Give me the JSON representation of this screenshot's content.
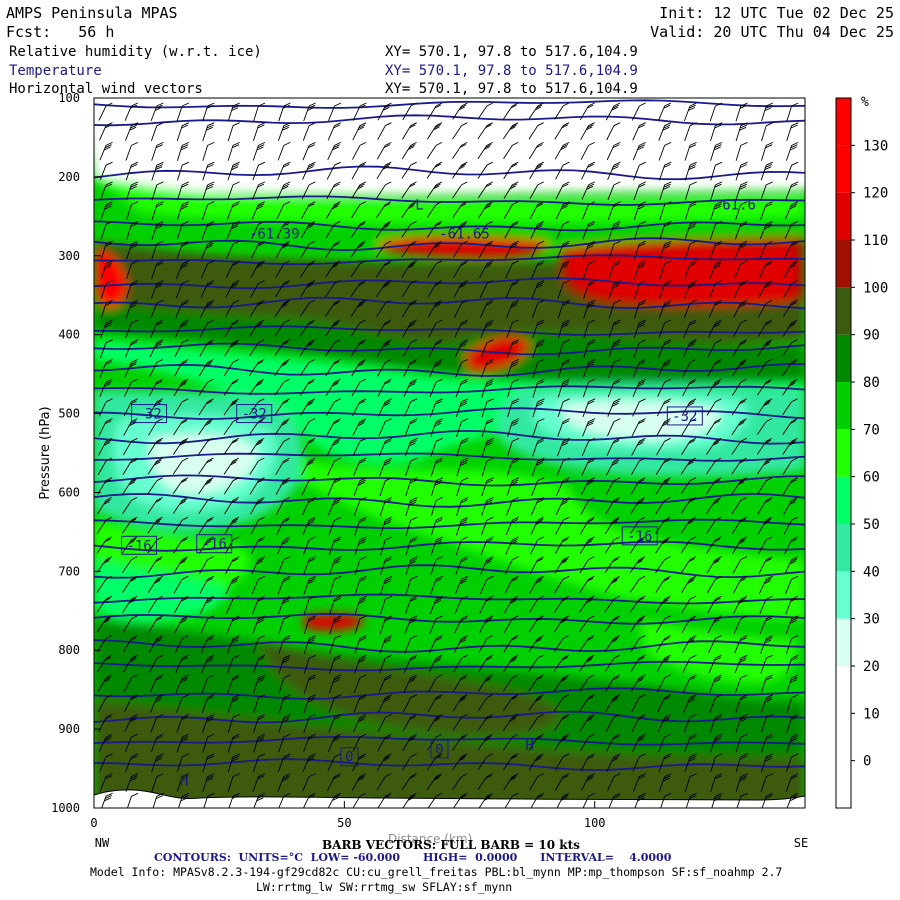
{
  "header": {
    "title": "AMPS Peninsula MPAS",
    "fcst": "Fcst:   56 h",
    "init": "Init: 12 UTC Tue 02 Dec 25",
    "valid": "Valid: 20 UTC Thu 04 Dec 25",
    "fields": [
      {
        "name": "Relative humidity (w.r.t. ice)",
        "xy": "XY= 570.1, 97.8 to 517.6,104.9"
      },
      {
        "name": "Temperature",
        "xy": "XY= 570.1, 97.8 to 517.6,104.9"
      },
      {
        "name": "Horizontal wind vectors",
        "xy": "XY= 570.1, 97.8 to 517.6,104.9"
      }
    ]
  },
  "footer": {
    "barb": "BARB VECTORS: FULL BARB = 10 kts",
    "xaxis_overlap": "Distance (km)",
    "contours": "CONTOURS:  UNITS=°C  LOW= -60.000      HIGH=  0.0000      INTERVAL=    4.0000",
    "model": "Model Info: MPASv8.2.3-194-gf29cd82c CU:cu_grell_freitas PBL:bl_mynn MP:mp_thompson SF:sf_noahmp 2.7",
    "model2": "LW:rrtmg_lw SW:rrtmg_sw SFLAY:sf_mynn"
  },
  "chart_data": {
    "type": "heatmap",
    "description_fields": [
      "Relative humidity (w.r.t. ice)",
      "Temperature",
      "Horizontal wind vectors"
    ],
    "xlabel": "",
    "ylabel": "Pressure (hPa)",
    "x_ticks": [
      0,
      50,
      100
    ],
    "x_end_labels": {
      "left": "NW",
      "right": "SE"
    },
    "xlim": [
      0,
      142
    ],
    "y_ticks": [
      100,
      200,
      300,
      400,
      500,
      600,
      700,
      800,
      900,
      1000
    ],
    "ylim": [
      1000,
      100
    ],
    "colorbar": {
      "unit": "%",
      "levels": [
        0,
        10,
        20,
        30,
        40,
        50,
        60,
        70,
        80,
        90,
        100,
        110,
        120,
        130
      ],
      "colors": [
        "#ffffff",
        "#ffffff",
        "#ffffff",
        "#d8fff0",
        "#66ffd0",
        "#33e8a0",
        "#00ff66",
        "#22ff00",
        "#00d000",
        "#008800",
        "#3c5a10",
        "#a01000",
        "#e00000",
        "#ff0000"
      ]
    },
    "temperature_labels": [
      {
        "text": "-61.39",
        "x": 36,
        "p": 272
      },
      {
        "text": "-61.65",
        "x": 74,
        "p": 272
      },
      {
        "text": "-61.6",
        "x": 128,
        "p": 235
      },
      {
        "text": "-32",
        "x": 11,
        "p": 500
      },
      {
        "text": "-32",
        "x": 32,
        "p": 500
      },
      {
        "text": "-32",
        "x": 118,
        "p": 503
      },
      {
        "text": "-16",
        "x": 9,
        "p": 667
      },
      {
        "text": "-16",
        "x": 24,
        "p": 665
      },
      {
        "text": "-16",
        "x": 109,
        "p": 655
      },
      {
        "text": "0",
        "x": 51,
        "p": 935
      },
      {
        "text": "0",
        "x": 69,
        "p": 925
      }
    ],
    "extrema_markers": [
      {
        "text": "L",
        "x": 65,
        "p": 235
      },
      {
        "text": "H",
        "x": 18,
        "p": 965
      },
      {
        "text": "H",
        "x": 87,
        "p": 920
      }
    ]
  }
}
